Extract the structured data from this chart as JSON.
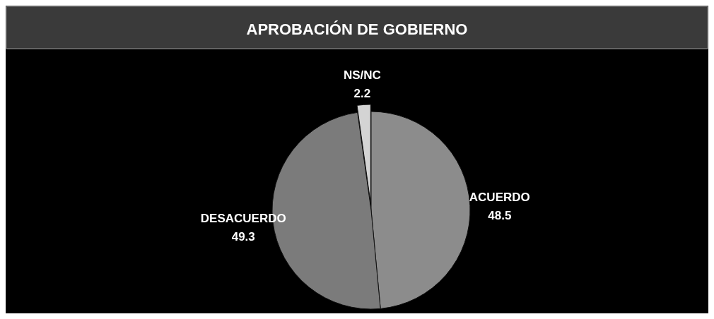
{
  "chart_data": {
    "type": "pie",
    "title": "APROBACIÓN DE GOBIERNO",
    "categories": [
      "ACUERDO",
      "DESACUERDO",
      "NS/NC"
    ],
    "values": [
      48.5,
      49.3,
      2.2
    ],
    "colors": [
      "#8c8c8c",
      "#7b7b7b",
      "#d4d4d4"
    ],
    "data_labels": true
  }
}
